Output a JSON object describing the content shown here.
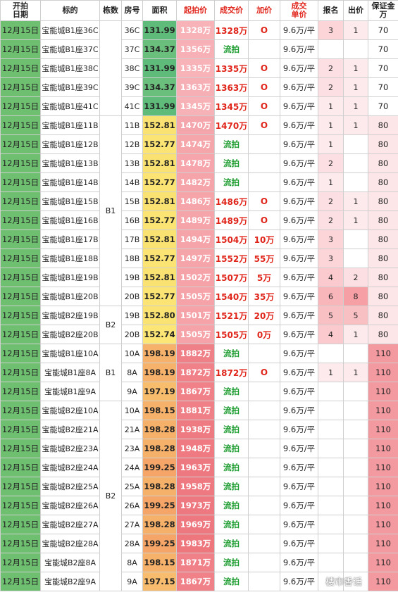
{
  "headers": {
    "date_line1": "开拍",
    "date_line2": "日期",
    "name": "标的",
    "building": "栋数",
    "room": "房号",
    "area": "面积",
    "start": "起拍价",
    "deal": "成交价",
    "add": "加价",
    "unit_line1": "成交",
    "unit_line2": "单价",
    "signup": "报名",
    "bids": "出价",
    "deposit_line1": "保证金",
    "deposit_line2": "万"
  },
  "building_groups": [
    {
      "label": "",
      "rows": 5
    },
    {
      "label": "B1",
      "rows": 10
    },
    {
      "label": "B2",
      "rows": 2
    },
    {
      "label": "B1",
      "rows": 3
    },
    {
      "label": "B2",
      "rows": 10
    }
  ],
  "rows": [
    {
      "date": "12月15日",
      "name": "宝能城B1座36C",
      "room": "36C",
      "area": "131.99",
      "start": "1328万",
      "deal": "1328万",
      "add": "O",
      "unit": "9.6万/平",
      "signup": "3",
      "bids": "1",
      "deposit": "70"
    },
    {
      "date": "12月15日",
      "name": "宝能城B1座37C",
      "room": "37C",
      "area": "134.37",
      "start": "1356万",
      "deal": "流拍",
      "add": "",
      "unit": "9.6万/平",
      "signup": "",
      "bids": "",
      "deposit": "70"
    },
    {
      "date": "12月15日",
      "name": "宝能城B1座38C",
      "room": "38C",
      "area": "131.99",
      "start": "1335万",
      "deal": "1335万",
      "add": "O",
      "unit": "9.6万/平",
      "signup": "2",
      "bids": "1",
      "deposit": "70"
    },
    {
      "date": "12月15日",
      "name": "宝能城B1座39C",
      "room": "39C",
      "area": "134.37",
      "start": "1363万",
      "deal": "1363万",
      "add": "O",
      "unit": "9.6万/平",
      "signup": "2",
      "bids": "1",
      "deposit": "70"
    },
    {
      "date": "12月15日",
      "name": "宝能城B1座41C",
      "room": "41C",
      "area": "131.99",
      "start": "1345万",
      "deal": "1345万",
      "add": "O",
      "unit": "9.6万/平",
      "signup": "1",
      "bids": "1",
      "deposit": "70"
    },
    {
      "date": "12月15日",
      "name": "宝能城B1座11B",
      "room": "11B",
      "area": "152.81",
      "start": "1470万",
      "deal": "1470万",
      "add": "O",
      "unit": "9.6万/平",
      "signup": "1",
      "bids": "1",
      "deposit": "80"
    },
    {
      "date": "12月15日",
      "name": "宝能城B1座12B",
      "room": "12B",
      "area": "152.77",
      "start": "1474万",
      "deal": "流拍",
      "add": "",
      "unit": "9.6万/平",
      "signup": "1",
      "bids": "",
      "deposit": "80"
    },
    {
      "date": "12月15日",
      "name": "宝能城B1座13B",
      "room": "13B",
      "area": "152.81",
      "start": "1478万",
      "deal": "流拍",
      "add": "",
      "unit": "9.6万/平",
      "signup": "2",
      "bids": "",
      "deposit": "80"
    },
    {
      "date": "12月15日",
      "name": "宝能城B1座14B",
      "room": "14B",
      "area": "152.77",
      "start": "1482万",
      "deal": "流拍",
      "add": "",
      "unit": "9.6万/平",
      "signup": "1",
      "bids": "",
      "deposit": "80"
    },
    {
      "date": "12月15日",
      "name": "宝能城B1座15B",
      "room": "15B",
      "area": "152.81",
      "start": "1486万",
      "deal": "1486万",
      "add": "O",
      "unit": "9.6万/平",
      "signup": "2",
      "bids": "1",
      "deposit": "80"
    },
    {
      "date": "12月15日",
      "name": "宝能城B1座16B",
      "room": "16B",
      "area": "152.77",
      "start": "1489万",
      "deal": "1489万",
      "add": "O",
      "unit": "9.6万/平",
      "signup": "2",
      "bids": "1",
      "deposit": "80"
    },
    {
      "date": "12月15日",
      "name": "宝能城B1座17B",
      "room": "17B",
      "area": "152.81",
      "start": "1494万",
      "deal": "1504万",
      "add": "10万",
      "unit": "9.6万/平",
      "signup": "3",
      "bids": "",
      "deposit": "80"
    },
    {
      "date": "12月15日",
      "name": "宝能城B1座18B",
      "room": "18B",
      "area": "152.77",
      "start": "1497万",
      "deal": "1552万",
      "add": "55万",
      "unit": "9.6万/平",
      "signup": "3",
      "bids": "",
      "deposit": "80"
    },
    {
      "date": "12月15日",
      "name": "宝能城B1座19B",
      "room": "19B",
      "area": "152.81",
      "start": "1502万",
      "deal": "1507万",
      "add": "5万",
      "unit": "9.6万/平",
      "signup": "4",
      "bids": "2",
      "deposit": "80"
    },
    {
      "date": "12月15日",
      "name": "宝能城B1座20B",
      "room": "20B",
      "area": "152.77",
      "start": "1505万",
      "deal": "1540万",
      "add": "35万",
      "unit": "9.6万/平",
      "signup": "6",
      "bids": "8",
      "deposit": "80"
    },
    {
      "date": "12月15日",
      "name": "宝能城B2座19B",
      "room": "19B",
      "area": "152.80",
      "start": "1501万",
      "deal": "1521万",
      "add": "20万",
      "unit": "9.6万/平",
      "signup": "5",
      "bids": "5",
      "deposit": "80"
    },
    {
      "date": "12月15日",
      "name": "宝能城B2座20B",
      "room": "20B",
      "area": "152.74",
      "start": "1505万",
      "deal": "1505万",
      "add": "0万",
      "unit": "9.6万/平",
      "signup": "4",
      "bids": "1",
      "deposit": "80"
    },
    {
      "date": "12月15日",
      "name": "宝能城B1座10A",
      "room": "10A",
      "area": "198.19",
      "start": "1882万",
      "deal": "流拍",
      "add": "",
      "unit": "9.6万/平",
      "signup": "",
      "bids": "",
      "deposit": "110"
    },
    {
      "date": "12月15日",
      "name": "宝能城B1座8A",
      "room": "8A",
      "area": "198.19",
      "start": "1872万",
      "deal": "1872万",
      "add": "O",
      "unit": "9.6万/平",
      "signup": "1",
      "bids": "1",
      "deposit": "110"
    },
    {
      "date": "12月15日",
      "name": "宝能城B1座9A",
      "room": "9A",
      "area": "197.19",
      "start": "1867万",
      "deal": "流拍",
      "add": "",
      "unit": "9.6万/平",
      "signup": "",
      "bids": "",
      "deposit": "110"
    },
    {
      "date": "12月15日",
      "name": "宝能城B2座10A",
      "room": "10A",
      "area": "198.15",
      "start": "1881万",
      "deal": "流拍",
      "add": "",
      "unit": "9.6万/平",
      "signup": "",
      "bids": "",
      "deposit": "110"
    },
    {
      "date": "12月15日",
      "name": "宝能城B2座21A",
      "room": "21A",
      "area": "198.28",
      "start": "1938万",
      "deal": "流拍",
      "add": "",
      "unit": "9.6万/平",
      "signup": "",
      "bids": "",
      "deposit": "110"
    },
    {
      "date": "12月15日",
      "name": "宝能城B2座23A",
      "room": "23A",
      "area": "198.28",
      "start": "1948万",
      "deal": "流拍",
      "add": "",
      "unit": "9.6万/平",
      "signup": "",
      "bids": "",
      "deposit": "110"
    },
    {
      "date": "12月15日",
      "name": "宝能城B2座24A",
      "room": "24A",
      "area": "199.25",
      "start": "1963万",
      "deal": "流拍",
      "add": "",
      "unit": "9.6万/平",
      "signup": "",
      "bids": "",
      "deposit": "110"
    },
    {
      "date": "12月15日",
      "name": "宝能城B2座25A",
      "room": "25A",
      "area": "198.28",
      "start": "1958万",
      "deal": "流拍",
      "add": "",
      "unit": "9.6万/平",
      "signup": "",
      "bids": "",
      "deposit": "110"
    },
    {
      "date": "12月15日",
      "name": "宝能城B2座26A",
      "room": "26A",
      "area": "199.25",
      "start": "1973万",
      "deal": "流拍",
      "add": "",
      "unit": "9.6万/平",
      "signup": "",
      "bids": "",
      "deposit": "110"
    },
    {
      "date": "12月15日",
      "name": "宝能城B2座27A",
      "room": "27A",
      "area": "198.28",
      "start": "1969万",
      "deal": "流拍",
      "add": "",
      "unit": "9.6万/平",
      "signup": "",
      "bids": "",
      "deposit": "110"
    },
    {
      "date": "12月15日",
      "name": "宝能城B2座28A",
      "room": "28A",
      "area": "199.25",
      "start": "1983万",
      "deal": "流拍",
      "add": "",
      "unit": "9.6万/平",
      "signup": "",
      "bids": "",
      "deposit": "110"
    },
    {
      "date": "12月15日",
      "name": "宝能城B2座8A",
      "room": "8A",
      "area": "198.15",
      "start": "1871万",
      "deal": "流拍",
      "add": "",
      "unit": "9.6万/平",
      "signup": "",
      "bids": "",
      "deposit": "110"
    },
    {
      "date": "12月15日",
      "name": "宝能城B2座9A",
      "room": "9A",
      "area": "197.15",
      "start": "1867万",
      "deal": "流拍",
      "add": "",
      "unit": "9.6万/平",
      "signup": "",
      "bids": "",
      "deposit": "110"
    }
  ],
  "fail_label": "流拍",
  "watermark": "楼市香话"
}
